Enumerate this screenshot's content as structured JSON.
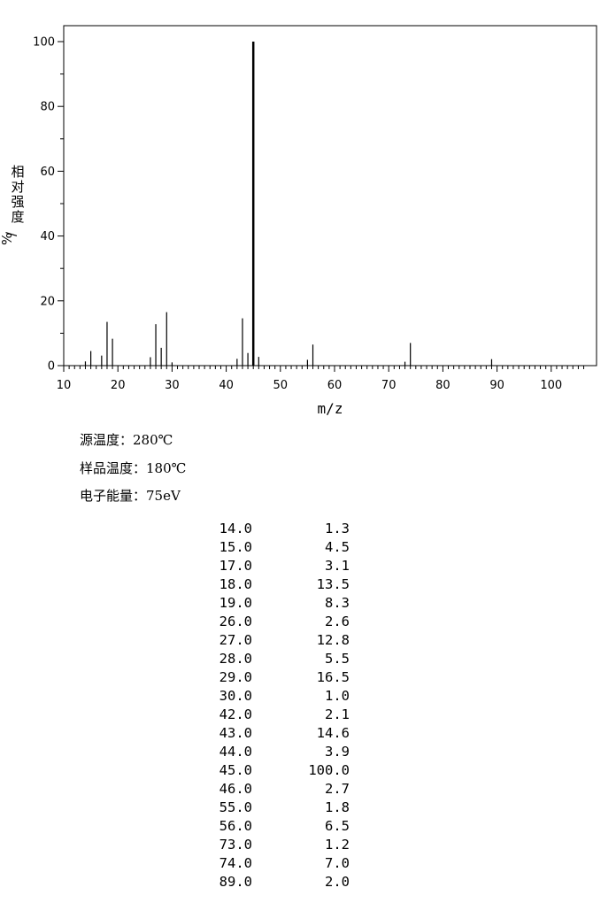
{
  "chart_data": {
    "type": "bar",
    "xlabel": "m/z",
    "ylabel": "相对强度/%",
    "xlim": [
      10,
      106
    ],
    "ylim": [
      0,
      100
    ],
    "xticks": [
      10,
      20,
      30,
      40,
      50,
      60,
      70,
      80,
      90,
      100
    ],
    "yticks": [
      0,
      20,
      40,
      60,
      80,
      100
    ],
    "grid": false,
    "x": [
      14,
      15,
      17,
      18,
      19,
      26,
      27,
      28,
      29,
      30,
      42,
      43,
      44,
      45,
      46,
      55,
      56,
      73,
      74,
      89
    ],
    "values": [
      1.3,
      4.5,
      3.1,
      13.5,
      8.3,
      2.6,
      12.8,
      5.5,
      16.5,
      1.0,
      2.1,
      14.6,
      3.9,
      100.0,
      2.7,
      1.8,
      6.5,
      1.2,
      7.0,
      2.0
    ]
  },
  "conditions": {
    "source_temp": "源温度：280℃",
    "sample_temp": "样品温度：180℃",
    "electron_energy": "电子能量：75eV"
  },
  "peak_table": [
    {
      "mz": "14.0",
      "intensity": "1.3"
    },
    {
      "mz": "15.0",
      "intensity": "4.5"
    },
    {
      "mz": "17.0",
      "intensity": "3.1"
    },
    {
      "mz": "18.0",
      "intensity": "13.5"
    },
    {
      "mz": "19.0",
      "intensity": "8.3"
    },
    {
      "mz": "26.0",
      "intensity": "2.6"
    },
    {
      "mz": "27.0",
      "intensity": "12.8"
    },
    {
      "mz": "28.0",
      "intensity": "5.5"
    },
    {
      "mz": "29.0",
      "intensity": "16.5"
    },
    {
      "mz": "30.0",
      "intensity": "1.0"
    },
    {
      "mz": "42.0",
      "intensity": "2.1"
    },
    {
      "mz": "43.0",
      "intensity": "14.6"
    },
    {
      "mz": "44.0",
      "intensity": "3.9"
    },
    {
      "mz": "45.0",
      "intensity": "100.0"
    },
    {
      "mz": "46.0",
      "intensity": "2.7"
    },
    {
      "mz": "55.0",
      "intensity": "1.8"
    },
    {
      "mz": "56.0",
      "intensity": "6.5"
    },
    {
      "mz": "73.0",
      "intensity": "1.2"
    },
    {
      "mz": "74.0",
      "intensity": "7.0"
    },
    {
      "mz": "89.0",
      "intensity": "2.0"
    }
  ]
}
